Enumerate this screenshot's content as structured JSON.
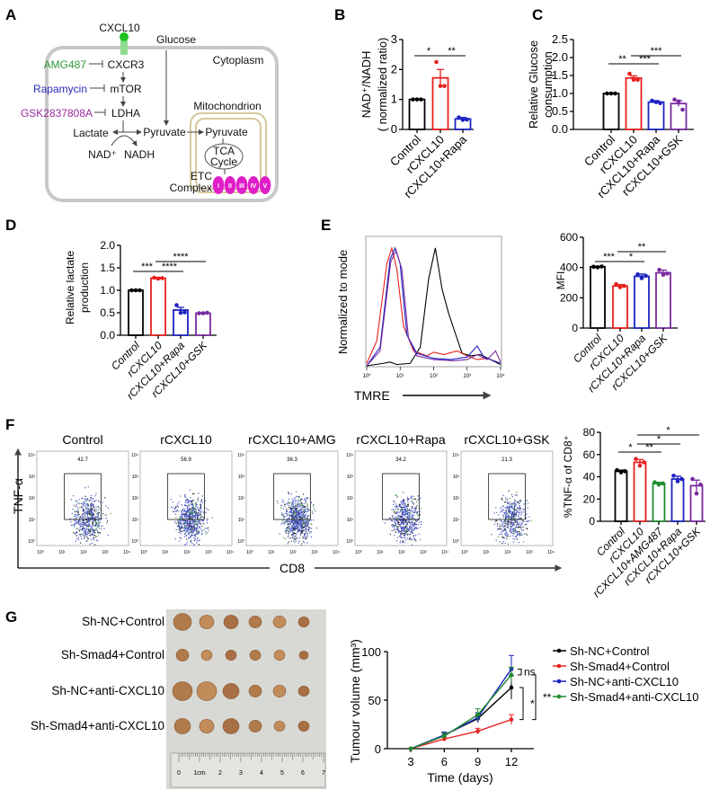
{
  "panel_labels": {
    "a": "A",
    "b": "B",
    "c": "C",
    "d": "D",
    "e": "E",
    "f": "F",
    "g": "G"
  },
  "diagram": {
    "ligand": "CXCL10",
    "glucose": "Glucose",
    "cytoplasm": "Cytoplasm",
    "inhibitor_1": "AMG487",
    "inhibitor_2": "Rapamycin",
    "inhibitor_3": "GSK2837808A",
    "receptor": "CXCR3",
    "kinase": "mTOR",
    "enzyme": "LDHA",
    "lactate": "Lactate",
    "pyruvate": "Pyruvate",
    "pyruvate_mito": "Pyruvate",
    "nad": "NAD⁺",
    "nadh": "NADH",
    "mitochondrion": "Mitochondrion",
    "tca_1": "TCA",
    "tca_2": "Cycle",
    "etc_1": "ETC",
    "etc_2": "Complex",
    "complexes": [
      "I",
      "II",
      "III",
      "IV",
      "V"
    ],
    "colors": {
      "amg": "#2e9a3a",
      "rapa": "#2a2ab8",
      "gsk": "#9a2a9a",
      "cxcl10": "#1ec21e",
      "complex": "#e01ec8",
      "mito": "#d8c89c"
    }
  },
  "flow": {
    "ylabel": "TNF-α",
    "xlabel": "CD8",
    "panels": [
      {
        "title": "Control",
        "gate_value": "42.7"
      },
      {
        "title": "rCXCL10",
        "gate_value": "56.9"
      },
      {
        "title": "rCXCL10+AMG",
        "gate_value": "36.3"
      },
      {
        "title": "rCXCL10+Rapa",
        "gate_value": "34.2"
      },
      {
        "title": "rCXCL10+GSK",
        "gate_value": "21.3"
      }
    ],
    "tick_labels": [
      "10⁰",
      "10¹",
      "10²",
      "10³",
      "10⁴"
    ]
  },
  "tumour_photo": {
    "rows": [
      "Sh-NC+Control",
      "Sh-Smad4+Control",
      "Sh-NC+anti-CXCL10",
      "Sh-Smad4+anti-CXCL10"
    ],
    "ruler_labels": [
      "0",
      "1cm",
      "2",
      "3",
      "4",
      "5",
      "6",
      "7"
    ]
  },
  "chart_data": [
    {
      "id": "B",
      "type": "bar",
      "ylabel": [
        "NAD⁺/NADH",
        "( normalized ratio)"
      ],
      "ylim": [
        0,
        3
      ],
      "yticks": [
        0,
        1,
        2,
        3
      ],
      "ytick_labels": [
        "0",
        "1",
        "2",
        "3"
      ],
      "categories": [
        "Control",
        "rCXCL10",
        "rCXCL10+Rapa"
      ],
      "values": [
        1.0,
        1.72,
        0.35
      ],
      "errors": [
        0.02,
        0.28,
        0.05
      ],
      "points": [
        [
          1,
          1,
          1
        ],
        [
          2.25,
          1.45,
          1.45
        ],
        [
          0.4,
          0.32,
          0.33
        ]
      ],
      "colors": [
        "#000000",
        "#e8201f",
        "#1c22c0"
      ],
      "significance": [
        {
          "from": 0,
          "to": 1,
          "label": "*"
        },
        {
          "from": 1,
          "to": 2,
          "label": "**"
        }
      ]
    },
    {
      "id": "C",
      "type": "bar",
      "ylabel": [
        "Relative Glucose",
        "consumption"
      ],
      "ylim": [
        0,
        2.5
      ],
      "yticks": [
        0,
        0.5,
        1,
        1.5,
        2,
        2.5
      ],
      "ytick_labels": [
        "0.0",
        "0.5",
        "1.0",
        "1.5",
        "2.0",
        "2.5"
      ],
      "categories": [
        "Control",
        "rCXCL10",
        "rCXCL10+Rapa",
        "rCXCL10+GSK"
      ],
      "values": [
        1.0,
        1.43,
        0.76,
        0.72
      ],
      "errors": [
        0.01,
        0.06,
        0.04,
        0.08
      ],
      "points": [
        [
          1,
          1,
          1
        ],
        [
          1.55,
          1.38,
          1.38
        ],
        [
          0.8,
          0.76,
          0.73
        ],
        [
          0.83,
          0.78,
          0.55
        ]
      ],
      "colors": [
        "#000000",
        "#e8201f",
        "#1c22c0",
        "#7a2aa0"
      ],
      "significance": [
        {
          "from": 0,
          "to": 1,
          "label": "**"
        },
        {
          "from": 1,
          "to": 2,
          "label": "***"
        },
        {
          "from": 1,
          "to": 3,
          "label": "***"
        }
      ]
    },
    {
      "id": "D",
      "type": "bar",
      "ylabel": [
        "Relative lactate",
        "production"
      ],
      "ylim": [
        0,
        2
      ],
      "yticks": [
        0,
        0.5,
        1,
        1.5,
        2
      ],
      "ytick_labels": [
        "0.0",
        "0.5",
        "1.0",
        "1.5",
        "2.0"
      ],
      "categories": [
        "Control",
        "rCXCL10",
        "rCXCL10+Rapa",
        "rCXCL10+GSK"
      ],
      "values": [
        1.0,
        1.27,
        0.56,
        0.49
      ],
      "errors": [
        0.01,
        0.02,
        0.06,
        0.01
      ],
      "points": [
        [
          1,
          1,
          1
        ],
        [
          1.28,
          1.26,
          1.27
        ],
        [
          0.67,
          0.5,
          0.51
        ],
        [
          0.49,
          0.49,
          0.5
        ]
      ],
      "colors": [
        "#000000",
        "#e8201f",
        "#1c22c0",
        "#7a2aa0"
      ],
      "significance": [
        {
          "from": 0,
          "to": 1,
          "label": "***"
        },
        {
          "from": 1,
          "to": 2,
          "label": "****"
        },
        {
          "from": 1,
          "to": 3,
          "label": "****"
        }
      ]
    },
    {
      "id": "E_hist",
      "type": "line",
      "xlabel": "TMRE",
      "ylabel": "Normalized to mode",
      "xscale": "log",
      "xlim": [
        0,
        4
      ],
      "ylim": [
        0,
        100
      ],
      "series": [
        {
          "name": "Control",
          "color": "#000000",
          "points": [
            [
              0,
              0
            ],
            [
              0.5,
              2
            ],
            [
              0.7,
              3
            ],
            [
              0.9,
              1
            ],
            [
              1.3,
              2
            ],
            [
              1.6,
              15
            ],
            [
              1.85,
              70
            ],
            [
              2.05,
              95
            ],
            [
              2.25,
              62
            ],
            [
              2.45,
              42
            ],
            [
              2.65,
              26
            ],
            [
              2.85,
              10
            ],
            [
              3.1,
              8
            ],
            [
              3.4,
              9
            ],
            [
              3.7,
              5
            ],
            [
              4,
              1
            ]
          ]
        },
        {
          "name": "rCXCL10",
          "color": "#e8201f",
          "points": [
            [
              0,
              2
            ],
            [
              0.3,
              20
            ],
            [
              0.6,
              82
            ],
            [
              0.75,
              95
            ],
            [
              0.9,
              78
            ],
            [
              1.1,
              32
            ],
            [
              1.4,
              12
            ],
            [
              1.8,
              8
            ],
            [
              2.0,
              11
            ],
            [
              2.3,
              9
            ],
            [
              2.7,
              12
            ],
            [
              3.0,
              8
            ],
            [
              3.3,
              5
            ],
            [
              3.6,
              6
            ],
            [
              4,
              2
            ]
          ]
        },
        {
          "name": "rCXCL10+Rapa",
          "color": "#1c22c0",
          "points": [
            [
              0,
              0
            ],
            [
              0.4,
              15
            ],
            [
              0.7,
              86
            ],
            [
              0.85,
              95
            ],
            [
              1.0,
              82
            ],
            [
              1.2,
              25
            ],
            [
              1.5,
              10
            ],
            [
              2,
              6
            ],
            [
              2.5,
              5
            ],
            [
              3,
              7
            ],
            [
              3.3,
              16
            ],
            [
              3.5,
              7
            ],
            [
              3.8,
              4
            ],
            [
              4,
              2
            ]
          ]
        },
        {
          "name": "rCXCL10+GSK",
          "color": "#7a2aa0",
          "points": [
            [
              0,
              0
            ],
            [
              0.4,
              12
            ],
            [
              0.72,
              84
            ],
            [
              0.88,
              93
            ],
            [
              1.05,
              78
            ],
            [
              1.25,
              22
            ],
            [
              1.5,
              8
            ],
            [
              2,
              5
            ],
            [
              2.6,
              4
            ],
            [
              3,
              5
            ],
            [
              3.3,
              9
            ],
            [
              3.6,
              5
            ],
            [
              3.85,
              12
            ],
            [
              4,
              3
            ]
          ]
        }
      ]
    },
    {
      "id": "E",
      "type": "bar",
      "ylabel": [
        "MFI"
      ],
      "ylim": [
        0,
        600
      ],
      "yticks": [
        0,
        200,
        400,
        600
      ],
      "ytick_labels": [
        "0",
        "200",
        "400",
        "600"
      ],
      "categories": [
        "Control",
        "rCXCL10",
        "rCXCL10+Rapa",
        "rCXCL10+GSK"
      ],
      "values": [
        405,
        278,
        342,
        365
      ],
      "errors": [
        3,
        10,
        15,
        18
      ],
      "points": [
        [
          405,
          402,
          407
        ],
        [
          290,
          270,
          278
        ],
        [
          355,
          330,
          345
        ],
        [
          385,
          352,
          360
        ]
      ],
      "colors": [
        "#000000",
        "#e8201f",
        "#1c22c0",
        "#7a2aa0"
      ],
      "significance": [
        {
          "from": 0,
          "to": 1,
          "label": "***"
        },
        {
          "from": 1,
          "to": 2,
          "label": "*"
        },
        {
          "from": 1,
          "to": 3,
          "label": "**"
        }
      ]
    },
    {
      "id": "F",
      "type": "bar",
      "ylabel": [
        "%TNF-α of CD8⁺"
      ],
      "ylim": [
        0,
        80
      ],
      "yticks": [
        0,
        20,
        40,
        60,
        80
      ],
      "ytick_labels": [
        "0",
        "20",
        "40",
        "60",
        "80"
      ],
      "categories": [
        "Control",
        "rCXCL10",
        "rCXCL10+AMG487",
        "rCXCL10+Rapa",
        "rCXCL10+GSK"
      ],
      "values": [
        45,
        53,
        34,
        38,
        32
      ],
      "errors": [
        1,
        2.5,
        1,
        2.5,
        5
      ],
      "points": [
        [
          46,
          44,
          45
        ],
        [
          56,
          50,
          53
        ],
        [
          35,
          33,
          34
        ],
        [
          41,
          36,
          38
        ],
        [
          38,
          25,
          33
        ]
      ],
      "colors": [
        "#000000",
        "#e8201f",
        "#1e8a2e",
        "#1c22c0",
        "#7a2aa0"
      ],
      "significance": [
        {
          "from": 0,
          "to": 1,
          "label": "*"
        },
        {
          "from": 1,
          "to": 2,
          "label": "**"
        },
        {
          "from": 1,
          "to": 3,
          "label": "*"
        },
        {
          "from": 1,
          "to": 4,
          "label": "*"
        }
      ]
    },
    {
      "id": "G",
      "type": "line",
      "xlabel": "Time (days)",
      "ylabel": "Tumour volume (mm³)",
      "x": [
        3,
        6,
        9,
        12
      ],
      "xticks": [
        "3",
        "6",
        "9",
        "12"
      ],
      "ylim": [
        0,
        100
      ],
      "yticks": [
        "0",
        "50",
        "100"
      ],
      "series": [
        {
          "name": "Sh-NC+Control",
          "color": "#000000",
          "values": [
            0,
            14,
            31,
            63
          ],
          "errors": [
            0,
            3,
            4,
            12
          ]
        },
        {
          "name": "Sh-Smad4+Control",
          "color": "#e8201f",
          "values": [
            0,
            10,
            18,
            30
          ],
          "errors": [
            0,
            2,
            3,
            5
          ]
        },
        {
          "name": "Sh-NC+anti-CXCL10",
          "color": "#1c22c0",
          "values": [
            0,
            14,
            32,
            82
          ],
          "errors": [
            0,
            3,
            5,
            14
          ]
        },
        {
          "name": "Sh-Smad4+anti-CXCL10",
          "color": "#1e8a2e",
          "values": [
            0,
            13,
            35,
            76
          ],
          "errors": [
            0,
            3,
            6,
            8
          ]
        }
      ],
      "significance": [
        {
          "a": 2,
          "b": 3,
          "label": "ns"
        },
        {
          "a": 0,
          "b": 1,
          "label": "*"
        },
        {
          "a": 3,
          "b": 1,
          "label": "**"
        }
      ]
    }
  ]
}
